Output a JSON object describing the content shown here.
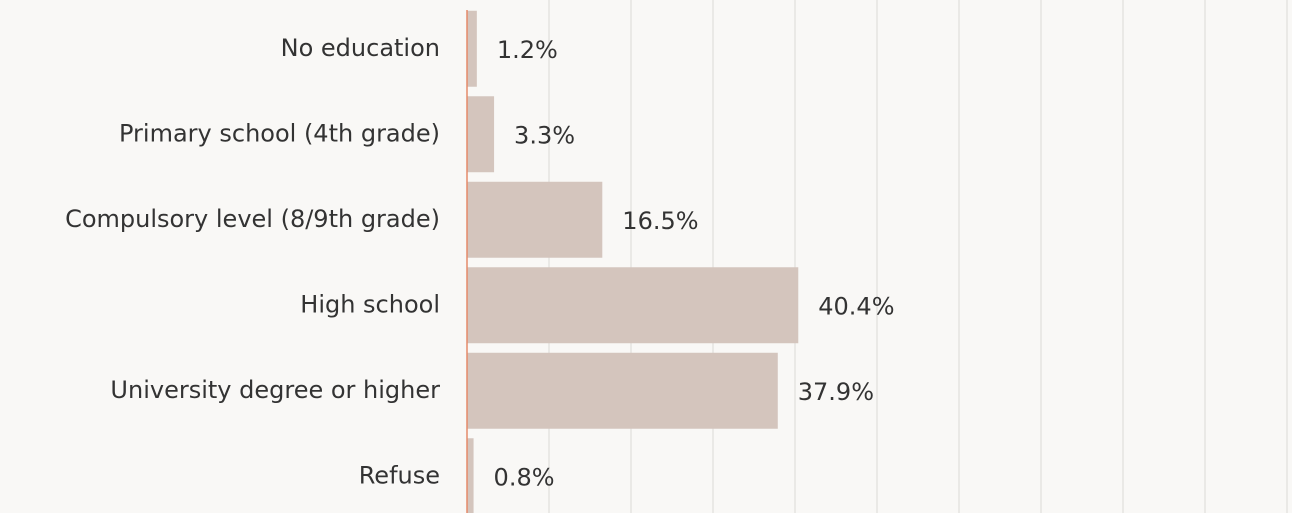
{
  "chart_data": {
    "type": "bar",
    "orientation": "horizontal",
    "categories": [
      "No education",
      "Primary school (4th grade)",
      "Compulsory level (8/9th grade)",
      "High school",
      "University degree or higher",
      "Refuse"
    ],
    "values": [
      1.2,
      3.3,
      16.5,
      40.4,
      37.9,
      0.8
    ],
    "value_labels": [
      "1.2%",
      "3.3%",
      "16.5%",
      "40.4%",
      "37.9%",
      "0.8%"
    ],
    "color": "#d4c5bd",
    "axis_color": "#e58a6a",
    "xlim": [
      0,
      100
    ],
    "xticks": [
      0,
      10,
      20,
      30,
      40,
      50,
      60,
      70,
      80,
      90,
      100
    ],
    "grid": true
  }
}
